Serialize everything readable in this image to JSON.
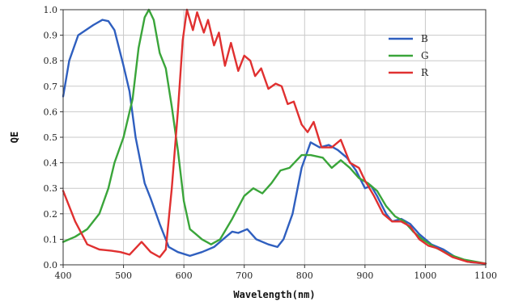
{
  "chart_data": {
    "type": "line",
    "title": "",
    "xlabel": "Wavelength(nm)",
    "ylabel": "QE",
    "xlim": [
      400,
      1100
    ],
    "ylim": [
      0.0,
      1.0
    ],
    "xticks": [
      "400",
      "500",
      "600",
      "700",
      "800",
      "900",
      "1000",
      "1100"
    ],
    "yticks": [
      "0.0",
      "0.1",
      "0.2",
      "0.3",
      "0.4",
      "0.5",
      "0.6",
      "0.7",
      "0.8",
      "0.9",
      "1.0"
    ],
    "grid": true,
    "legend_position": "top-right",
    "series": [
      {
        "name": "B",
        "color": "#2f5fbf",
        "points": [
          [
            400,
            0.66
          ],
          [
            410,
            0.8
          ],
          [
            425,
            0.9
          ],
          [
            450,
            0.94
          ],
          [
            465,
            0.96
          ],
          [
            475,
            0.955
          ],
          [
            485,
            0.92
          ],
          [
            500,
            0.78
          ],
          [
            510,
            0.68
          ],
          [
            520,
            0.5
          ],
          [
            535,
            0.32
          ],
          [
            545,
            0.26
          ],
          [
            560,
            0.16
          ],
          [
            575,
            0.07
          ],
          [
            590,
            0.05
          ],
          [
            610,
            0.035
          ],
          [
            630,
            0.05
          ],
          [
            650,
            0.07
          ],
          [
            670,
            0.11
          ],
          [
            680,
            0.13
          ],
          [
            690,
            0.125
          ],
          [
            705,
            0.14
          ],
          [
            720,
            0.1
          ],
          [
            740,
            0.08
          ],
          [
            755,
            0.07
          ],
          [
            765,
            0.1
          ],
          [
            780,
            0.2
          ],
          [
            795,
            0.38
          ],
          [
            810,
            0.48
          ],
          [
            825,
            0.46
          ],
          [
            840,
            0.47
          ],
          [
            855,
            0.45
          ],
          [
            870,
            0.42
          ],
          [
            885,
            0.37
          ],
          [
            900,
            0.3
          ],
          [
            910,
            0.31
          ],
          [
            920,
            0.27
          ],
          [
            935,
            0.2
          ],
          [
            945,
            0.17
          ],
          [
            960,
            0.18
          ],
          [
            975,
            0.16
          ],
          [
            990,
            0.12
          ],
          [
            1010,
            0.08
          ],
          [
            1030,
            0.06
          ],
          [
            1050,
            0.03
          ],
          [
            1075,
            0.01
          ],
          [
            1100,
            0.005
          ]
        ]
      },
      {
        "name": "G",
        "color": "#3aa53a",
        "points": [
          [
            400,
            0.09
          ],
          [
            420,
            0.11
          ],
          [
            440,
            0.14
          ],
          [
            460,
            0.2
          ],
          [
            475,
            0.3
          ],
          [
            485,
            0.4
          ],
          [
            500,
            0.5
          ],
          [
            515,
            0.65
          ],
          [
            525,
            0.85
          ],
          [
            535,
            0.97
          ],
          [
            542,
            1.0
          ],
          [
            550,
            0.96
          ],
          [
            560,
            0.83
          ],
          [
            570,
            0.77
          ],
          [
            580,
            0.62
          ],
          [
            590,
            0.45
          ],
          [
            600,
            0.25
          ],
          [
            610,
            0.14
          ],
          [
            620,
            0.12
          ],
          [
            630,
            0.1
          ],
          [
            645,
            0.08
          ],
          [
            660,
            0.1
          ],
          [
            680,
            0.18
          ],
          [
            700,
            0.27
          ],
          [
            715,
            0.3
          ],
          [
            730,
            0.28
          ],
          [
            745,
            0.32
          ],
          [
            760,
            0.37
          ],
          [
            775,
            0.38
          ],
          [
            795,
            0.43
          ],
          [
            810,
            0.43
          ],
          [
            830,
            0.42
          ],
          [
            845,
            0.38
          ],
          [
            860,
            0.41
          ],
          [
            875,
            0.38
          ],
          [
            890,
            0.34
          ],
          [
            905,
            0.32
          ],
          [
            920,
            0.29
          ],
          [
            935,
            0.23
          ],
          [
            950,
            0.19
          ],
          [
            965,
            0.17
          ],
          [
            980,
            0.13
          ],
          [
            995,
            0.1
          ],
          [
            1015,
            0.07
          ],
          [
            1040,
            0.04
          ],
          [
            1065,
            0.02
          ],
          [
            1100,
            0.005
          ]
        ]
      },
      {
        "name": "R",
        "color": "#e03030",
        "points": [
          [
            400,
            0.29
          ],
          [
            420,
            0.17
          ],
          [
            440,
            0.08
          ],
          [
            460,
            0.06
          ],
          [
            480,
            0.055
          ],
          [
            495,
            0.05
          ],
          [
            510,
            0.04
          ],
          [
            530,
            0.09
          ],
          [
            545,
            0.05
          ],
          [
            560,
            0.03
          ],
          [
            570,
            0.06
          ],
          [
            580,
            0.3
          ],
          [
            590,
            0.6
          ],
          [
            598,
            0.88
          ],
          [
            605,
            1.0
          ],
          [
            615,
            0.92
          ],
          [
            622,
            0.99
          ],
          [
            633,
            0.91
          ],
          [
            640,
            0.96
          ],
          [
            650,
            0.86
          ],
          [
            658,
            0.91
          ],
          [
            668,
            0.78
          ],
          [
            678,
            0.87
          ],
          [
            690,
            0.76
          ],
          [
            700,
            0.82
          ],
          [
            710,
            0.8
          ],
          [
            718,
            0.74
          ],
          [
            728,
            0.77
          ],
          [
            740,
            0.69
          ],
          [
            752,
            0.71
          ],
          [
            762,
            0.7
          ],
          [
            772,
            0.63
          ],
          [
            782,
            0.64
          ],
          [
            795,
            0.55
          ],
          [
            805,
            0.52
          ],
          [
            815,
            0.56
          ],
          [
            828,
            0.46
          ],
          [
            845,
            0.46
          ],
          [
            860,
            0.49
          ],
          [
            875,
            0.4
          ],
          [
            890,
            0.38
          ],
          [
            900,
            0.33
          ],
          [
            915,
            0.27
          ],
          [
            930,
            0.2
          ],
          [
            945,
            0.17
          ],
          [
            960,
            0.17
          ],
          [
            975,
            0.15
          ],
          [
            990,
            0.1
          ],
          [
            1005,
            0.075
          ],
          [
            1020,
            0.065
          ],
          [
            1045,
            0.03
          ],
          [
            1070,
            0.012
          ],
          [
            1100,
            0.005
          ]
        ]
      }
    ]
  }
}
